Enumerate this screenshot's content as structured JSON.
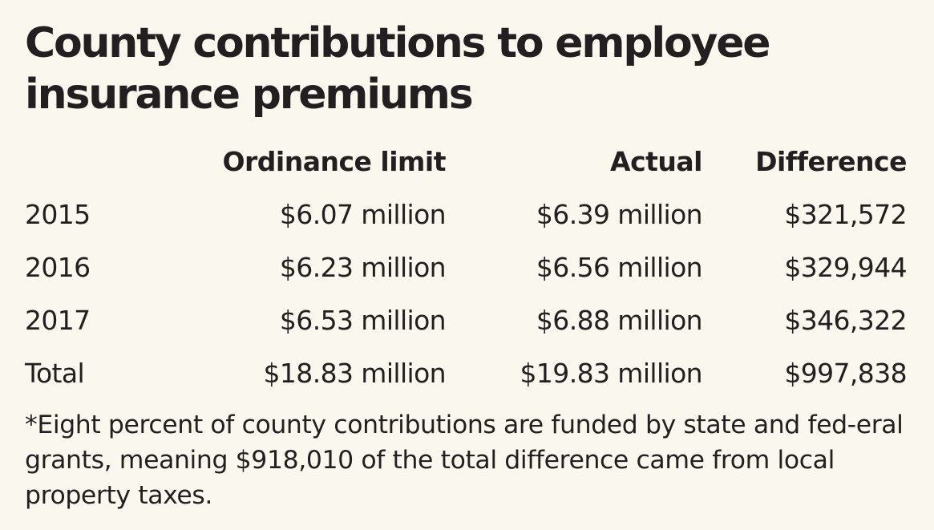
{
  "title": "County contributions to employee insurance premiums",
  "chart_data": {
    "type": "table",
    "title": "County contributions to employee insurance premiums",
    "columns": [
      "",
      "Ordinance limit",
      "Actual",
      "Difference"
    ],
    "rows": [
      [
        "2015",
        "$6.07 million",
        "$6.39 million",
        "$321,572"
      ],
      [
        "2016",
        "$6.23 million",
        "$6.56 million",
        "$329,944"
      ],
      [
        "2017",
        "$6.53 million",
        "$6.88 million",
        "$346,322"
      ],
      [
        "Total",
        "$18.83 million",
        "$19.83 million",
        "$997,838"
      ]
    ],
    "footnote": "*Eight percent of county contributions are funded by state and fed-eral grants, meaning $918,010 of the total difference came from local property taxes."
  },
  "note": "*Eight percent of county contributions are funded by state and fed-eral grants, meaning $918,010 of the total difference came from local property taxes."
}
